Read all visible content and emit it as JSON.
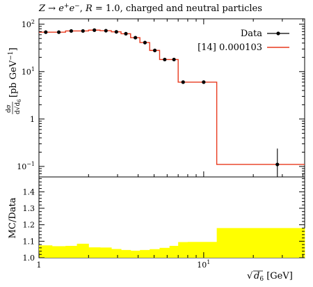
{
  "chart_data": [
    {
      "type": "line",
      "title": "Z → e⁺e⁻, R = 1.0, charged and neutral particles",
      "title_parts": {
        "a": "Z → e",
        "b": "+",
        "c": "e",
        "d": "−",
        "e": ", ",
        "f": "R",
        "g": " = 1.0, charged and neutral particles"
      },
      "xscale": "log",
      "yscale": "log",
      "xlim": [
        1,
        41
      ],
      "ylim": [
        0.06,
        130
      ],
      "xlabel": "√d6 [GeV]",
      "xlabel_parts": {
        "base": "d",
        "sub": "6",
        "unit": " [GeV]"
      },
      "ylabel": "dσ/d√d6 [pb GeV⁻¹]",
      "ylabel_parts": {
        "num": "dσ",
        "den": "d√d",
        "sub": "6",
        "unit": "[pb GeV",
        "exp": "−1",
        "close": "]"
      },
      "x_ticks": [
        {
          "value": 1,
          "label": "1"
        },
        {
          "value": 10,
          "label": "10",
          "exp": "1"
        }
      ],
      "y_ticks": [
        {
          "value": 100,
          "base": "10",
          "exp": "2"
        },
        {
          "value": 10,
          "base": "10",
          "exp": "1"
        },
        {
          "value": 1,
          "base": "1",
          "exp": ""
        },
        {
          "value": 0.1,
          "base": "10",
          "exp": "−1"
        }
      ],
      "legend_position": "top-right",
      "legend": {
        "data_label": "Data",
        "mc_label": "[14] 0.000103"
      },
      "bin_edges": [
        1.0,
        1.2,
        1.45,
        1.7,
        2.0,
        2.35,
        2.75,
        3.15,
        3.6,
        4.1,
        4.7,
        5.4,
        6.2,
        7.0,
        8.0,
        12.0,
        41.0
      ],
      "series": [
        {
          "name": "Data",
          "style": "points",
          "color": "#000000",
          "x": [
            1.1,
            1.32,
            1.57,
            1.85,
            2.17,
            2.55,
            2.95,
            3.37,
            3.85,
            4.4,
            5.05,
            5.8,
            6.6,
            7.5,
            10.0,
            28.0
          ],
          "y": [
            68,
            68,
            72,
            72,
            75,
            73,
            69,
            63,
            52,
            41,
            28,
            18,
            18,
            6.0,
            6.0,
            0.11
          ],
          "err_low": [
            0,
            0,
            0,
            0,
            0,
            0,
            0,
            0,
            0,
            0,
            0,
            0,
            0,
            0,
            0,
            0.095
          ],
          "err_high": [
            0,
            0,
            0,
            0,
            0,
            0,
            0,
            0,
            0,
            0,
            0,
            0,
            0,
            0,
            0,
            0.128
          ]
        },
        {
          "name": "[14] 0.000103",
          "style": "step",
          "color": "#e8391d",
          "values": [
            68,
            68,
            72,
            72,
            75,
            73,
            69,
            63,
            52,
            41,
            28,
            18,
            18,
            6.0,
            6.0,
            0.11
          ]
        }
      ]
    },
    {
      "type": "area",
      "ylabel": "MC/Data",
      "xscale": "log",
      "xlim": [
        1,
        41
      ],
      "ylim": [
        1.0,
        1.49
      ],
      "y_ticks": [
        {
          "value": 1.0,
          "label": "1.0"
        },
        {
          "value": 1.1,
          "label": "1.1"
        },
        {
          "value": 1.2,
          "label": "1.2"
        },
        {
          "value": 1.3,
          "label": "1.3"
        },
        {
          "value": 1.4,
          "label": "1.4"
        }
      ],
      "band_color": "#ffff00",
      "bin_edges": [
        1.0,
        1.2,
        1.45,
        1.7,
        2.0,
        2.35,
        2.75,
        3.15,
        3.6,
        4.1,
        4.7,
        5.4,
        6.2,
        7.0,
        8.0,
        12.0,
        41.0
      ],
      "band_upper": [
        1.075,
        1.07,
        1.072,
        1.085,
        1.063,
        1.062,
        1.053,
        1.047,
        1.043,
        1.047,
        1.052,
        1.06,
        1.072,
        1.095,
        1.096,
        1.18
      ]
    }
  ]
}
